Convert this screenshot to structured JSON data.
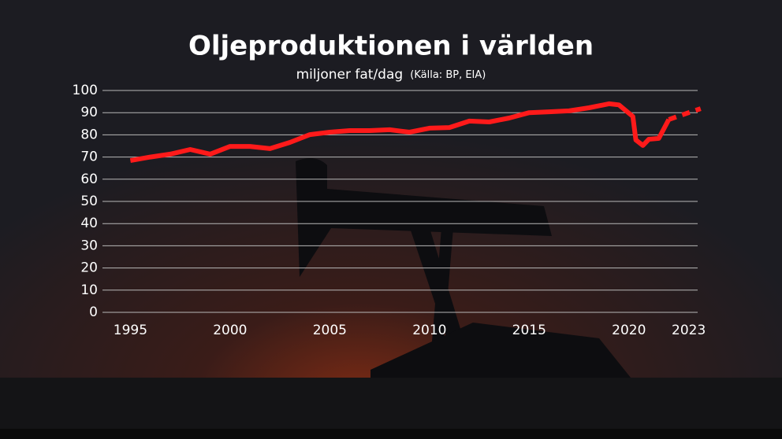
{
  "chart_data": {
    "type": "line",
    "title": "Oljeproduktionen i världen",
    "subtitle": "miljoner fat/dag",
    "source": "(Källa: BP, EIA)",
    "x": [
      1995,
      1996,
      1997,
      1998,
      1999,
      2000,
      2001,
      2002,
      2003,
      2004,
      2005,
      2006,
      2007,
      2008,
      2009,
      2010,
      2011,
      2012,
      2013,
      2014,
      2015,
      2016,
      2017,
      2018,
      2019,
      2019.5,
      2020.2,
      2020.35,
      2020.7,
      2021,
      2021.5,
      2022,
      2023,
      2023.6
    ],
    "series": [
      {
        "color": "#ff1a1a",
        "dashed": false,
        "values": [
          68.4,
          70,
          71.3,
          73.4,
          71.3,
          74.8,
          74.8,
          73.8,
          76.6,
          80.1,
          81.2,
          81.9,
          81.9,
          82.3,
          81.2,
          83,
          83.3,
          86.2,
          85.8,
          87.6,
          90,
          90.4,
          90.8,
          92.2,
          94,
          93.5,
          88.3,
          77.7,
          75.2,
          78,
          78.4,
          86.9,
          null,
          null
        ]
      },
      {
        "color": "#ff1a1a",
        "dashed": true,
        "values": [
          null,
          null,
          null,
          null,
          null,
          null,
          null,
          null,
          null,
          null,
          null,
          null,
          null,
          null,
          null,
          null,
          null,
          null,
          null,
          null,
          null,
          null,
          null,
          null,
          null,
          null,
          null,
          null,
          null,
          null,
          null,
          86.9,
          90,
          91.8
        ]
      }
    ],
    "xlim": [
      1993.6,
      2024.2
    ],
    "ylim": [
      0,
      100
    ],
    "xticks": [
      1995,
      2000,
      2005,
      2010,
      2015,
      2020,
      2023
    ],
    "yticks": [
      0,
      10,
      20,
      30,
      40,
      50,
      60,
      70,
      80,
      90,
      100
    ],
    "grid": true
  }
}
